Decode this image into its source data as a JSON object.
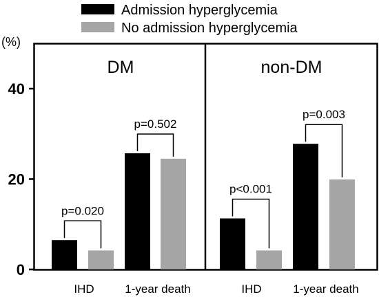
{
  "legend": [
    {
      "label": "Admission hyperglycemia",
      "color": "#000000"
    },
    {
      "label": "No admission hyperglycemia",
      "color": "#a6a6a6"
    }
  ],
  "chart_data": {
    "type": "bar",
    "yunit": "(%)",
    "ylim": [
      0,
      40
    ],
    "yticks": [
      "0",
      "20",
      "40"
    ],
    "grid": false,
    "legend_position": "top",
    "series": [
      {
        "name": "Admission hyperglycemia",
        "color": "#000000"
      },
      {
        "name": "No admission hyperglycemia",
        "color": "#a6a6a6"
      }
    ],
    "panels": [
      {
        "title": "DM",
        "groups": [
          {
            "category": "IHD",
            "values": [
              6.5,
              4.2
            ],
            "pvalue": "p=0.020"
          },
          {
            "category": "1-year death",
            "values": [
              25.7,
              24.5
            ],
            "pvalue": "p=0.502"
          }
        ]
      },
      {
        "title": "non-DM",
        "groups": [
          {
            "category": "IHD",
            "values": [
              11.3,
              4.2
            ],
            "pvalue": "p<0.001"
          },
          {
            "category": "1-year death",
            "values": [
              27.8,
              19.9
            ],
            "pvalue": "p=0.003"
          }
        ]
      }
    ]
  }
}
